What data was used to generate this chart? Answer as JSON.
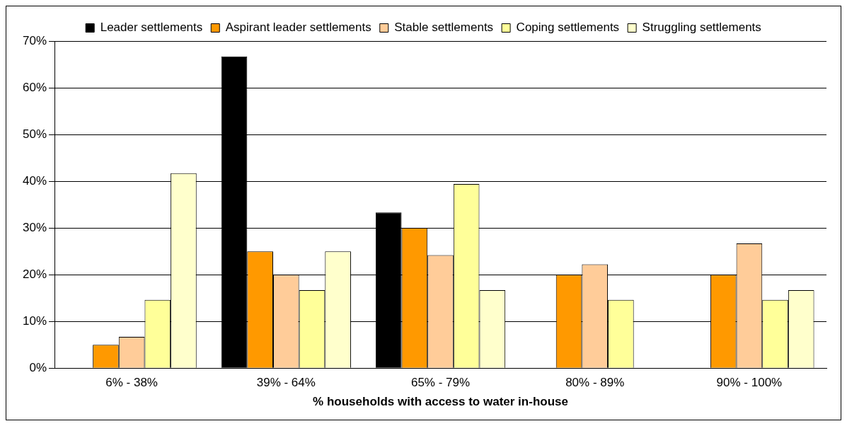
{
  "chart_data": {
    "type": "bar",
    "xlabel": "% households with access to water in-house",
    "categories": [
      "6% - 38%",
      "39% - 64%",
      "65% - 79%",
      "80% - 89%",
      "90% - 100%"
    ],
    "series": [
      {
        "name": "Leader settlements",
        "color": "#000000",
        "values": [
          0,
          66.7,
          33.3,
          0,
          0
        ]
      },
      {
        "name": "Aspirant leader settlements",
        "color": "#ff9900",
        "values": [
          5,
          25,
          30,
          20,
          20
        ]
      },
      {
        "name": "Stable settlements",
        "color": "#ffcc99",
        "values": [
          6.7,
          20,
          24.2,
          22.2,
          26.7
        ]
      },
      {
        "name": "Coping settlements",
        "color": "#ffff99",
        "values": [
          14.6,
          16.7,
          39.4,
          14.6,
          14.6
        ]
      },
      {
        "name": "Struggling settlements",
        "color": "#ffffcc",
        "values": [
          41.7,
          25,
          16.7,
          0,
          16.7
        ]
      }
    ],
    "ylim": [
      0,
      70
    ],
    "yticks": [
      {
        "value": 0,
        "label": "0%"
      },
      {
        "value": 10,
        "label": "10%"
      },
      {
        "value": 20,
        "label": "20%"
      },
      {
        "value": 30,
        "label": "30%"
      },
      {
        "value": 40,
        "label": "40%"
      },
      {
        "value": 50,
        "label": "50%"
      },
      {
        "value": 60,
        "label": "60%"
      },
      {
        "value": 70,
        "label": "70%"
      }
    ],
    "grid": "y",
    "legend": "top"
  }
}
